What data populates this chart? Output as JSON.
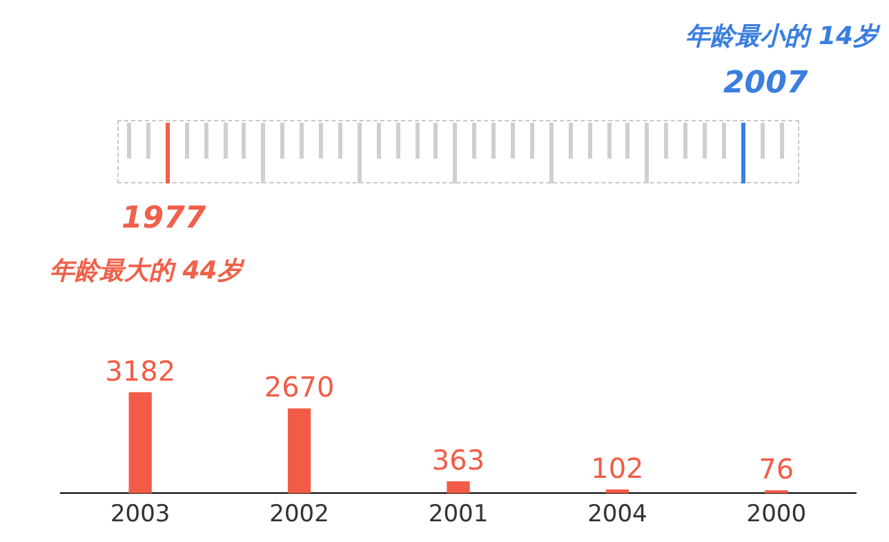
{
  "chart_data": {
    "type": "bar",
    "categories": [
      "2003",
      "2002",
      "2001",
      "2004",
      "2000"
    ],
    "values": [
      3182,
      2670,
      363,
      102,
      76
    ],
    "color": "#f25c47",
    "data_labels": true,
    "tick_labels": "x",
    "grid": false,
    "legend": false,
    "annotations": [
      "年龄最小的 14岁",
      "2007",
      "1977",
      "年龄最大的 44岁"
    ]
  }
}
